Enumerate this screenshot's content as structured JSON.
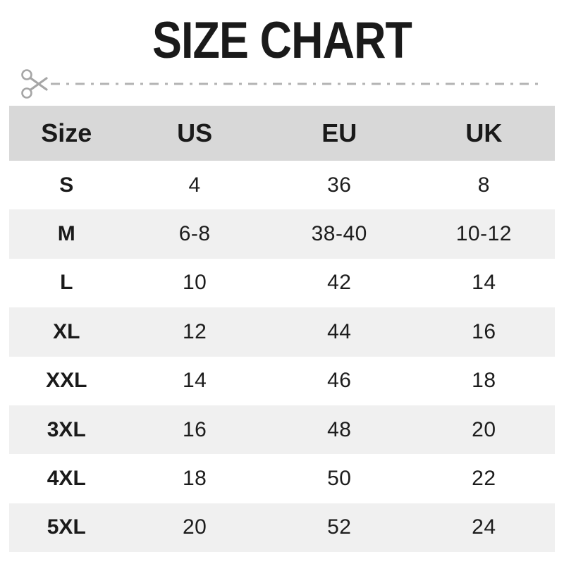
{
  "title": "SIZE CHART",
  "cut_line": {
    "icon": "scissors"
  },
  "table": {
    "headers": [
      "Size",
      "US",
      "EU",
      "UK"
    ],
    "rows": [
      [
        "S",
        "4",
        "36",
        "8"
      ],
      [
        "M",
        "6-8",
        "38-40",
        "10-12"
      ],
      [
        "L",
        "10",
        "42",
        "14"
      ],
      [
        "XL",
        "12",
        "44",
        "16"
      ],
      [
        "XXL",
        "14",
        "46",
        "18"
      ],
      [
        "3XL",
        "16",
        "48",
        "20"
      ],
      [
        "4XL",
        "18",
        "50",
        "22"
      ],
      [
        "5XL",
        "20",
        "52",
        "24"
      ]
    ]
  },
  "colors": {
    "header_bg": "#d8d8d8",
    "stripe_bg": "#f0f0f0",
    "title_text": "#1a1a1a",
    "cell_text": "#1c1c1c",
    "dash_line": "#b3b3b3",
    "scissors": "#a6a6a6",
    "page_bg": "#ffffff"
  }
}
